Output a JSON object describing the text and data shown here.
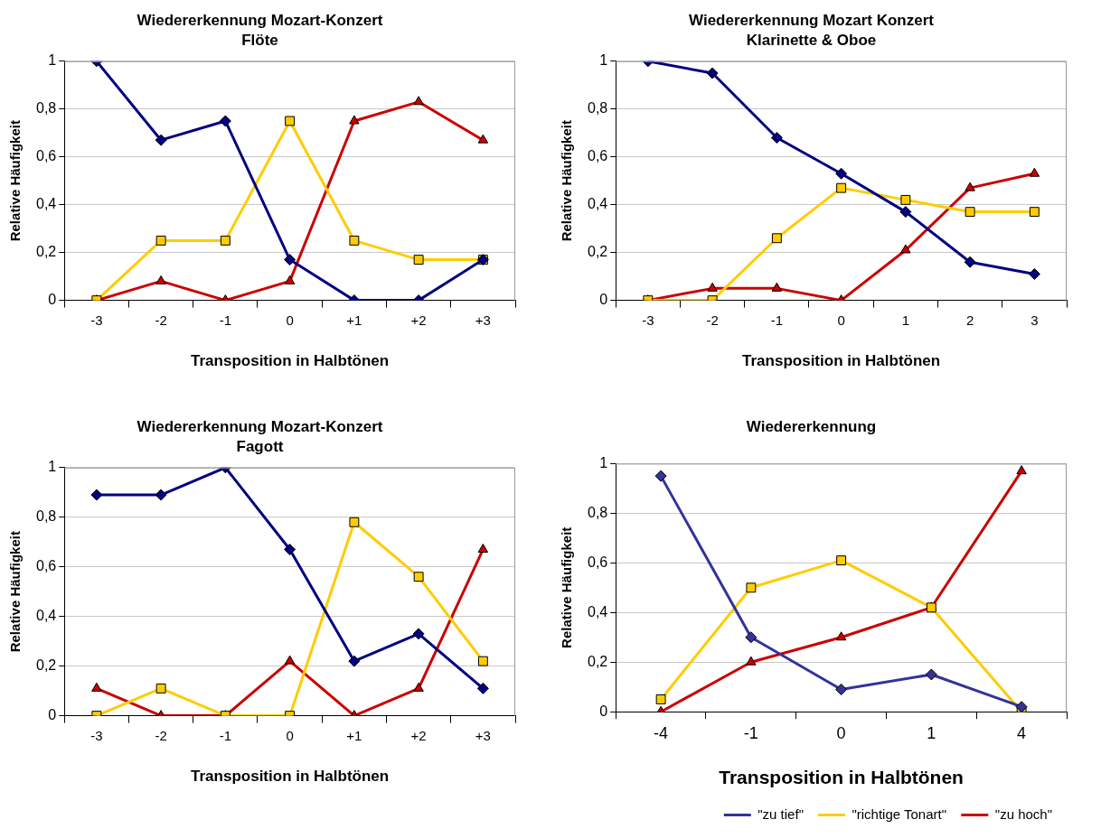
{
  "chart_data": [
    {
      "type": "line",
      "title": "Wiedererkennung Mozart-Konzert",
      "subtitle": "Flöte",
      "xlabel": "Transposition in Halbtönen",
      "ylabel": "Relative Häufigkeit",
      "categories": [
        "-3",
        "-2",
        "-1",
        "0",
        "+1",
        "+2",
        "+3"
      ],
      "series": [
        {
          "color": "#000080",
          "marker": "diamond",
          "values": [
            1,
            0.67,
            0.75,
            0.17,
            0,
            0,
            0.17
          ]
        },
        {
          "color": "#ffcc00",
          "marker": "square",
          "values": [
            0,
            0.25,
            0.25,
            0.75,
            0.25,
            0.17,
            0.17
          ]
        },
        {
          "color": "#cc0000",
          "marker": "triangle",
          "values": [
            0,
            0.08,
            0,
            0.08,
            0.75,
            0.83,
            0.67
          ]
        }
      ],
      "ylim": [
        0,
        1
      ],
      "yticks": [
        {
          "value": 0,
          "label": "0"
        },
        {
          "value": 0.2,
          "label": "0,2"
        },
        {
          "value": 0.4,
          "label": "0,4"
        },
        {
          "value": 0.6,
          "label": "0,6"
        },
        {
          "value": 0.8,
          "label": "0,8"
        },
        {
          "value": 1,
          "label": "1"
        }
      ],
      "grid": "y",
      "legend": false,
      "line_style": "solid"
    },
    {
      "type": "line",
      "title": "Wiedererkennung Mozart Konzert",
      "subtitle": "Klarinette & Oboe",
      "xlabel": "Transposition in Halbtönen",
      "ylabel": "Relative Häufigkeit",
      "categories": [
        "-3",
        "-2",
        "-1",
        "0",
        "1",
        "2",
        "3"
      ],
      "series": [
        {
          "color": "#000080",
          "marker": "diamond",
          "values": [
            1,
            0.95,
            0.68,
            0.53,
            0.37,
            0.16,
            0.11
          ]
        },
        {
          "color": "#ffcc00",
          "marker": "square",
          "values": [
            0,
            0,
            0.26,
            0.47,
            0.42,
            0.37,
            0.37
          ]
        },
        {
          "color": "#cc0000",
          "marker": "triangle",
          "values": [
            0,
            0.05,
            0.05,
            0,
            0.21,
            0.47,
            0.53
          ]
        }
      ],
      "ylim": [
        0,
        1
      ],
      "yticks": [
        {
          "value": 0,
          "label": "0"
        },
        {
          "value": 0.2,
          "label": "0,2"
        },
        {
          "value": 0.4,
          "label": "0,4"
        },
        {
          "value": 0.6,
          "label": "0,6"
        },
        {
          "value": 0.8,
          "label": "0,8"
        },
        {
          "value": 1,
          "label": "1"
        }
      ],
      "grid": "y",
      "legend": false,
      "line_style": "solid"
    },
    {
      "type": "line",
      "title": "Wiedererkennung Mozart-Konzert",
      "subtitle": "Fagott",
      "xlabel": "Transposition in Halbtönen",
      "ylabel": "Relative Häufigkeit",
      "categories": [
        "-3",
        "-2",
        "-1",
        "0",
        "+1",
        "+2",
        "+3"
      ],
      "series": [
        {
          "color": "#000080",
          "marker": "diamond",
          "values": [
            0.89,
            0.89,
            1,
            0.67,
            0.22,
            0.33,
            0.11
          ]
        },
        {
          "color": "#ffcc00",
          "marker": "square",
          "values": [
            0,
            0.11,
            0,
            0,
            0.78,
            0.56,
            0.22
          ]
        },
        {
          "color": "#cc0000",
          "marker": "triangle",
          "values": [
            0.11,
            0,
            0,
            0.22,
            0,
            0.11,
            0.67
          ]
        }
      ],
      "ylim": [
        0,
        1
      ],
      "yticks": [
        {
          "value": 0,
          "label": "0"
        },
        {
          "value": 0.2,
          "label": "0,2"
        },
        {
          "value": 0.4,
          "label": "0,4"
        },
        {
          "value": 0.6,
          "label": "0,6"
        },
        {
          "value": 0.8,
          "label": "0,8"
        },
        {
          "value": 1,
          "label": "1"
        }
      ],
      "grid": "y",
      "legend": false,
      "line_style": "solid"
    },
    {
      "type": "line",
      "title": "Wiedererkennung",
      "xlabel": "Transposition in Halbtönen",
      "ylabel": "Relative Häufigkeit",
      "categories": [
        "-4",
        "-1",
        "0",
        "1",
        "4"
      ],
      "series": [
        {
          "name": "\"zu tief\"",
          "color": "#333399",
          "marker": "diamond",
          "values": [
            0.95,
            0.3,
            0.09,
            0.15,
            0.02
          ]
        },
        {
          "name": "\"richtige Tonart\"",
          "color": "#ffcc00",
          "marker": "square",
          "values": [
            0.05,
            0.5,
            0.61,
            0.42,
            0
          ]
        },
        {
          "name": "\"zu hoch\"",
          "color": "#cc0000",
          "marker": "triangle",
          "values": [
            0,
            0.2,
            0.3,
            0.42,
            0.97
          ]
        }
      ],
      "ylim": [
        0,
        1
      ],
      "yticks": [
        {
          "value": 0,
          "label": "0"
        },
        {
          "value": 0.2,
          "label": "0,2"
        },
        {
          "value": 0.4,
          "label": "0,4"
        },
        {
          "value": 0.6,
          "label": "0,6"
        },
        {
          "value": 0.8,
          "label": "0,8"
        },
        {
          "value": 1,
          "label": "1"
        }
      ],
      "grid": "y",
      "legend": "bottom right",
      "line_style": "solid"
    }
  ]
}
